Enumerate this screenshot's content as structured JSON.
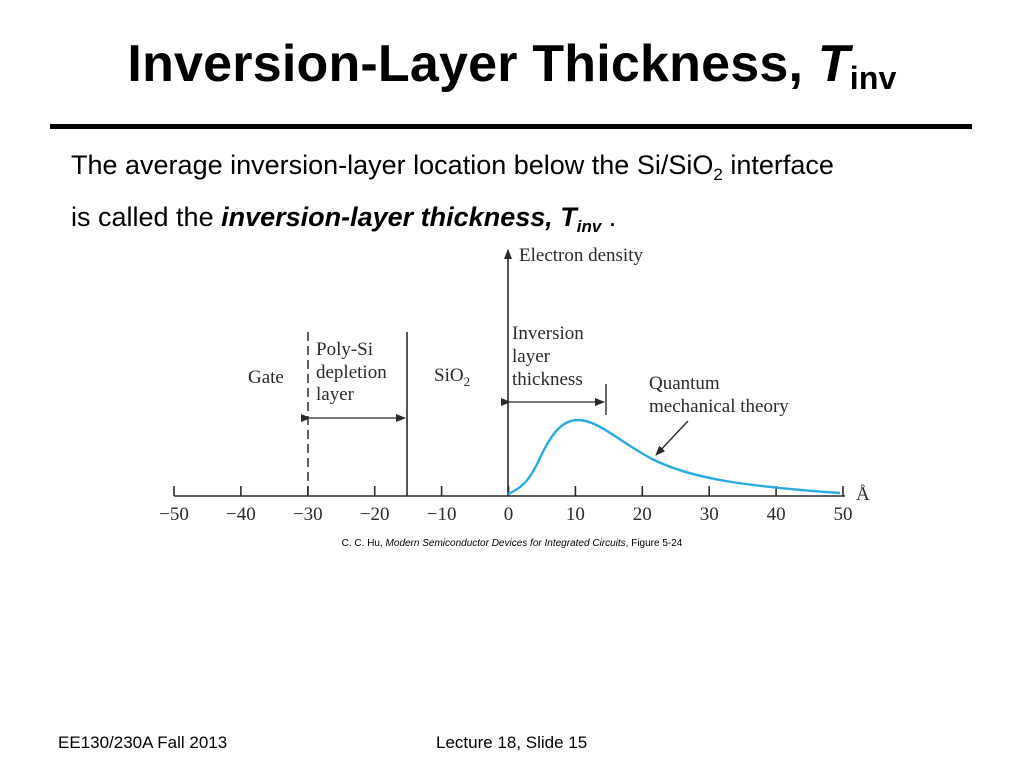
{
  "title": {
    "main": "Inversion-Layer Thickness, ",
    "var": "T",
    "sub": "inv"
  },
  "body": {
    "line1_a": "The average inversion-layer location below the Si/SiO",
    "line1_sub": "2",
    "line1_b": " interface",
    "line2_a": "is called the ",
    "line2_emph": "inversion-layer thickness, T",
    "line2_sub": "inv",
    "line2_end": " ."
  },
  "figure": {
    "y_axis_label": "Electron density",
    "x_unit": "Å",
    "region_gate": "Gate",
    "region_polysi": [
      "Poly-Si",
      "depletion",
      "layer"
    ],
    "region_sio2": "SiO",
    "region_sio2_sub": "2",
    "inversion_label": [
      "Inversion",
      "layer",
      "thickness"
    ],
    "curve_label": [
      "Quantum",
      "mechanical theory"
    ],
    "curve_color": "#29abe2",
    "tick_labels": [
      "−50",
      "−40",
      "−30",
      "−20",
      "−10",
      "0",
      "10",
      "20",
      "30",
      "40",
      "50"
    ]
  },
  "caption": {
    "author": "C. C. Hu, ",
    "book": "Modern Semiconductor Devices for Integrated Circuits",
    "figure": ", Figure 5-24"
  },
  "footer": {
    "course": "EE130/230A Fall 2013",
    "slide": "Lecture 18, Slide 15"
  }
}
